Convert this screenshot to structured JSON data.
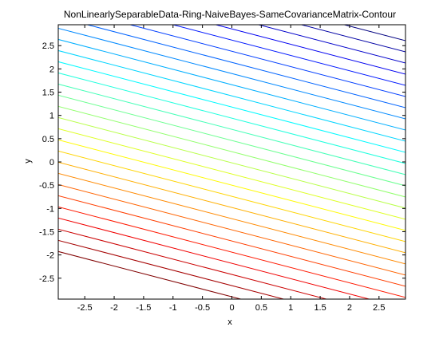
{
  "chart_data": {
    "type": "contour",
    "title": "NonLinearlySeparableData-Ring-NaiveBayes-SameCovarianceMatrix-Contour",
    "xlabel": "x",
    "ylabel": "y",
    "xlim": [
      -2.95,
      2.95
    ],
    "ylim": [
      -2.95,
      2.95
    ],
    "x_ticks": [
      -2.5,
      -2,
      -1.5,
      -1,
      -0.5,
      0,
      0.5,
      1,
      1.5,
      2,
      2.5
    ],
    "y_ticks": [
      -2.5,
      -2,
      -1.5,
      -1,
      -0.5,
      0,
      0.5,
      1,
      1.5,
      2,
      2.5
    ],
    "x_tick_labels": [
      "-2.5",
      "-2",
      "-1.5",
      "-1",
      "-0.5",
      "0",
      "0.5",
      "1",
      "1.5",
      "2",
      "2.5"
    ],
    "y_tick_labels": [
      "-2.5",
      "-2",
      "-1.5",
      "-1",
      "-0.5",
      "0",
      "0.5",
      "1",
      "1.5",
      "2",
      "2.5"
    ],
    "contour_lines": {
      "description": "parallel straight contour lines y = -0.33*x + c",
      "slope": -0.33,
      "intercepts": [
        -2.9,
        -2.66,
        -2.42,
        -2.18,
        -1.94,
        -1.7,
        -1.46,
        -1.22,
        -0.98,
        -0.74,
        -0.5,
        -0.26,
        -0.02,
        0.22,
        0.46,
        0.7,
        0.94,
        1.18,
        1.42,
        1.66,
        1.9,
        2.14,
        2.38,
        2.62,
        2.86,
        3.1,
        3.34,
        3.58
      ],
      "colormap": "jet-reversed (bottom dark red to top dark blue)"
    },
    "grid": false,
    "legend": "none"
  }
}
